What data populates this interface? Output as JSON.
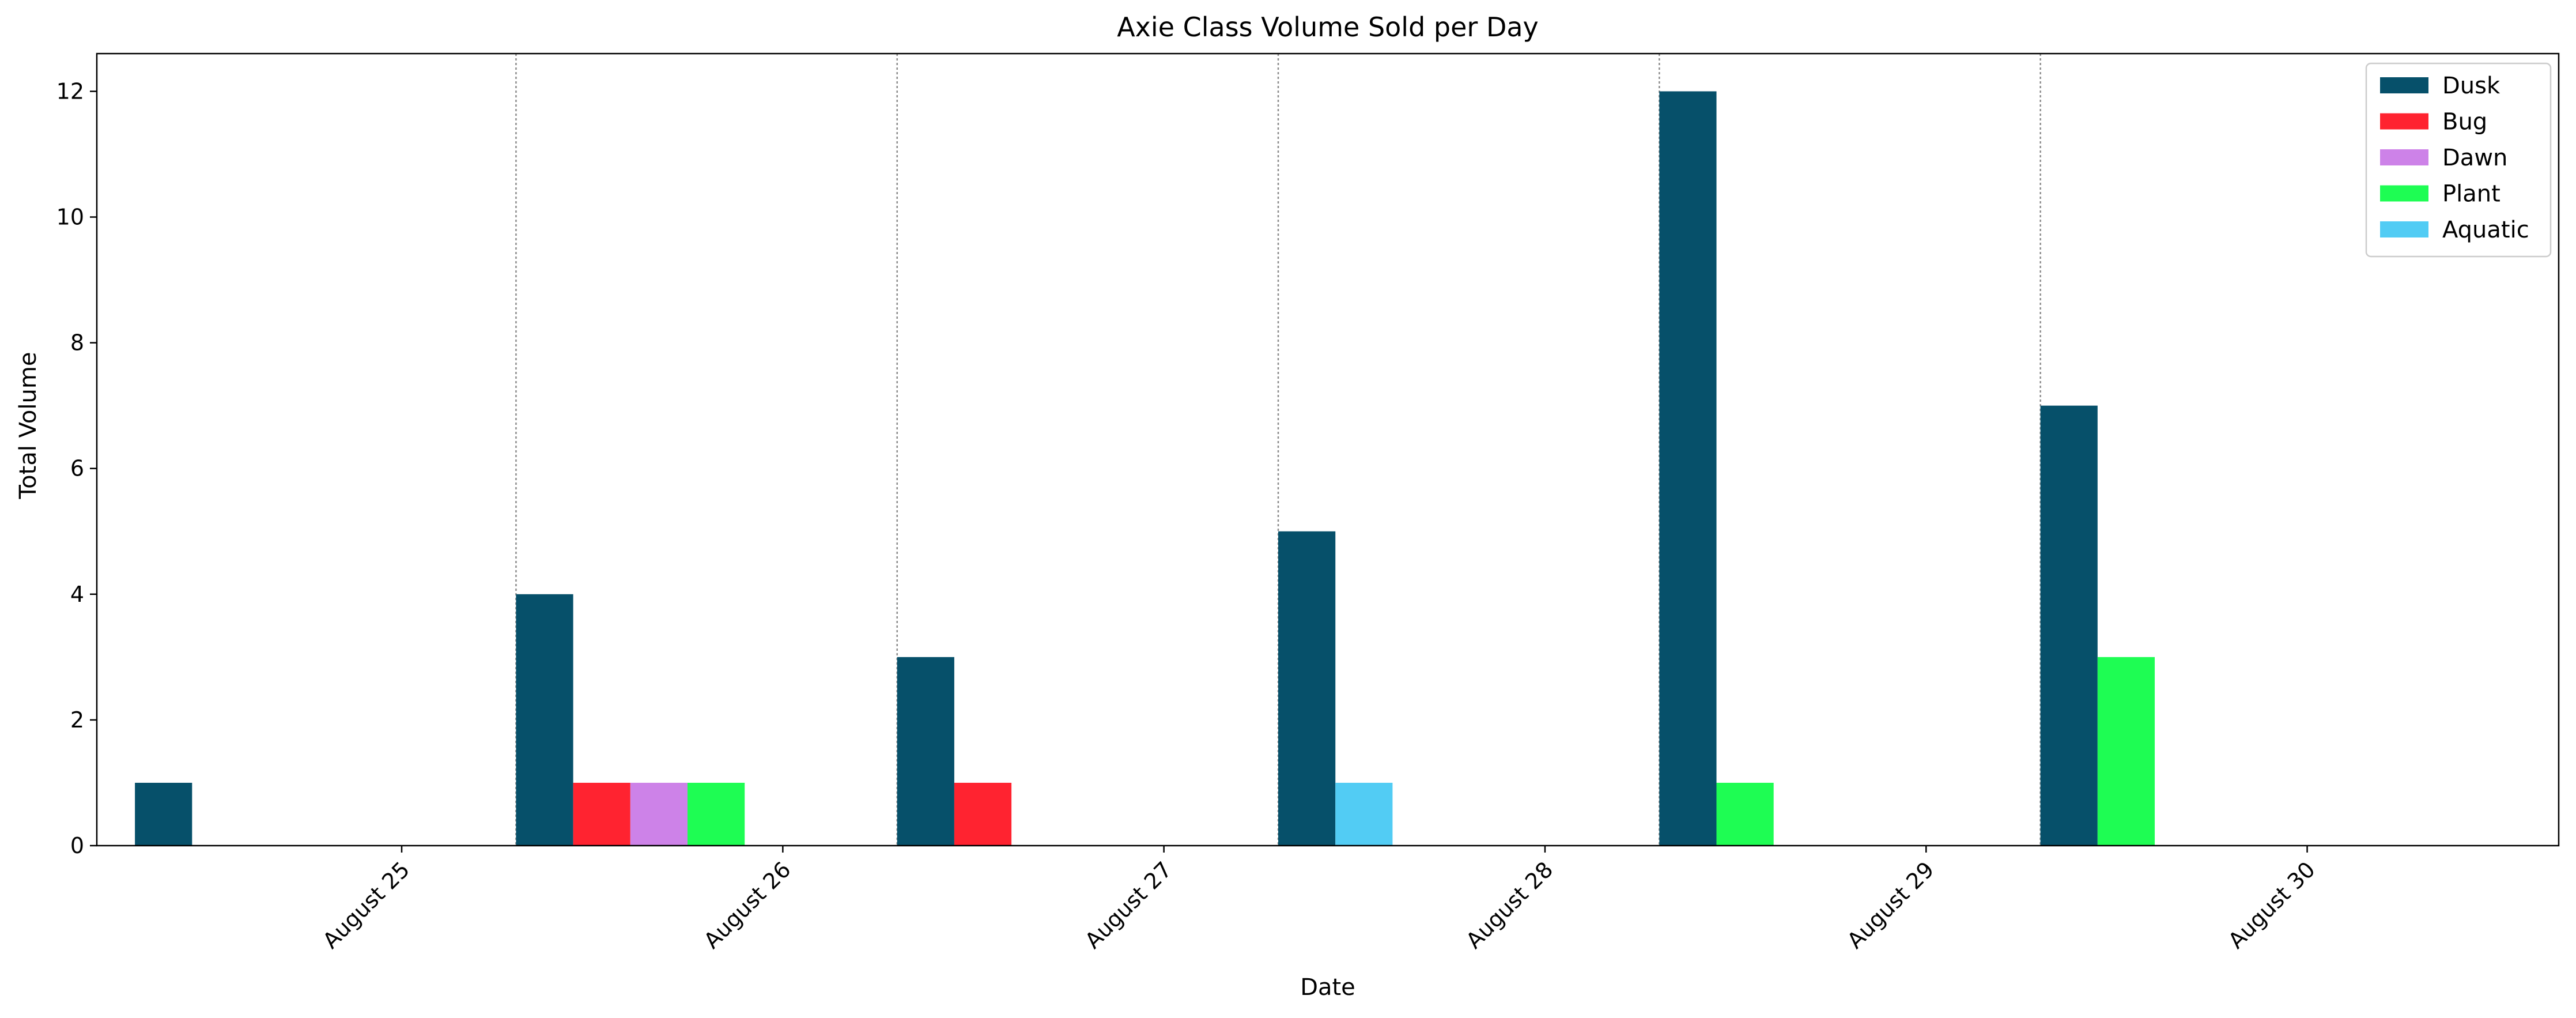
{
  "chart_data": {
    "type": "bar",
    "title": "Axie Class Volume Sold per Day",
    "xlabel": "Date",
    "ylabel": "Total Volume",
    "ylim": [
      0,
      12.6
    ],
    "yticks": [
      0,
      2,
      4,
      6,
      8,
      10,
      12
    ],
    "grid": "vertical dotted separators between day groups",
    "legend_position": "top-right",
    "x_tick_labels": [
      "August 25",
      "August 26",
      "August 27",
      "August 28",
      "August 29",
      "August 30"
    ],
    "groups": [
      {
        "bars": [
          {
            "series": "Dusk",
            "value": 1
          }
        ]
      },
      {
        "bars": [
          {
            "series": "Dusk",
            "value": 4
          },
          {
            "series": "Bug",
            "value": 1
          },
          {
            "series": "Dawn",
            "value": 1
          },
          {
            "series": "Plant",
            "value": 1
          }
        ]
      },
      {
        "bars": [
          {
            "series": "Dusk",
            "value": 3
          },
          {
            "series": "Bug",
            "value": 1
          }
        ]
      },
      {
        "bars": [
          {
            "series": "Dusk",
            "value": 5
          },
          {
            "series": "Aquatic",
            "value": 1
          }
        ]
      },
      {
        "bars": [
          {
            "series": "Dusk",
            "value": 12
          },
          {
            "series": "Plant",
            "value": 1
          }
        ]
      },
      {
        "bars": [
          {
            "series": "Dusk",
            "value": 7
          },
          {
            "series": "Plant",
            "value": 3
          }
        ]
      }
    ],
    "series": [
      {
        "name": "Dusk",
        "color": "#06506a"
      },
      {
        "name": "Bug",
        "color": "#ff2330"
      },
      {
        "name": "Dawn",
        "color": "#cd82e8"
      },
      {
        "name": "Plant",
        "color": "#1efd53"
      },
      {
        "name": "Aquatic",
        "color": "#52ccf4"
      }
    ]
  }
}
